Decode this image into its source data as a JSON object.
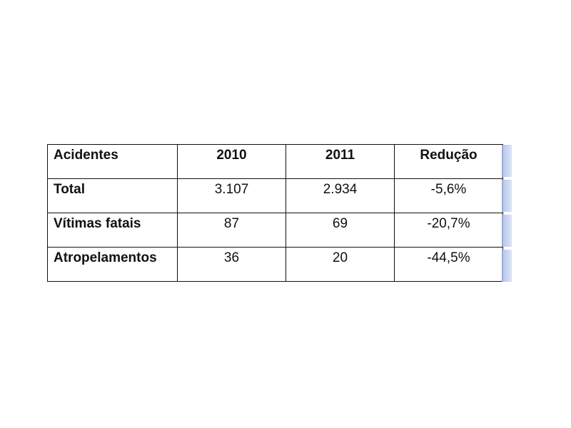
{
  "table": {
    "headers": [
      "Acidentes",
      "2010",
      "2011",
      "Redução"
    ],
    "rows": [
      {
        "label": "Total",
        "values": [
          "3.107",
          "2.934",
          "-5,6%"
        ]
      },
      {
        "label": "Vítimas fatais",
        "values": [
          "87",
          "69",
          "-20,7%"
        ]
      },
      {
        "label": "Atropelamentos",
        "values": [
          "36",
          "20",
          "-44,5%"
        ]
      }
    ]
  },
  "colors": {
    "border": "#111111",
    "side_tab": "#b9c8ea"
  }
}
